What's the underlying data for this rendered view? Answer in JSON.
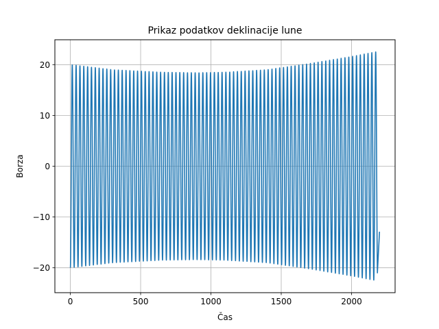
{
  "chart_data": {
    "type": "line",
    "title": "Prikaz podatkov deklinacije lune",
    "xlabel": "Čas",
    "ylabel": "Borza",
    "xlim": [
      -110,
      2310
    ],
    "ylim": [
      -24.9,
      24.9
    ],
    "xticks": [
      0,
      500,
      1000,
      1500,
      2000
    ],
    "yticks": [
      -20,
      -10,
      0,
      10,
      20
    ],
    "xtick_labels": [
      "0",
      "500",
      "1000",
      "1500",
      "2000"
    ],
    "ytick_labels": [
      "−20",
      "−10",
      "0",
      "10",
      "20"
    ],
    "grid": true,
    "series_color": "#1f77b4",
    "series": [
      {
        "points_note": "oscillating declination series, ~81 cycles of ~27.3 samples",
        "x_start": 0,
        "x_end": 2199,
        "period": 27.32,
        "amplitude_envelope": [
          {
            "x": 0,
            "amp": 20.0
          },
          {
            "x": 300,
            "amp": 19.0
          },
          {
            "x": 650,
            "amp": 18.5
          },
          {
            "x": 900,
            "amp": 18.4
          },
          {
            "x": 1100,
            "amp": 18.5
          },
          {
            "x": 1400,
            "amp": 19.0
          },
          {
            "x": 1700,
            "amp": 20.2
          },
          {
            "x": 2000,
            "amp": 21.6
          },
          {
            "x": 2170,
            "amp": 22.5
          }
        ],
        "end_value": -12.9
      }
    ]
  }
}
